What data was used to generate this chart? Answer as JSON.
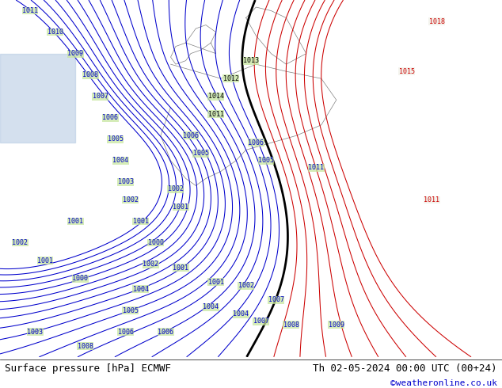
{
  "title_left": "Surface pressure [hPa] ECMWF",
  "title_right": "Th 02-05-2024 00:00 UTC (00+24)",
  "credit": "©weatheronline.co.uk",
  "background_color": "#ffffff",
  "land_color": "#c8e6a0",
  "sea_color": "#c8d8f0",
  "map_bg": "#c8e6a0",
  "contour_color_blue": "#0000cc",
  "contour_color_red": "#cc0000",
  "contour_color_black": "#000000",
  "label_fontsize": 6,
  "title_fontsize": 9,
  "credit_fontsize": 8,
  "credit_color": "#0000cc",
  "bottom_bar_color": "#ffffff",
  "pressure_min": 996,
  "pressure_max": 1020,
  "pressure_step": 1
}
